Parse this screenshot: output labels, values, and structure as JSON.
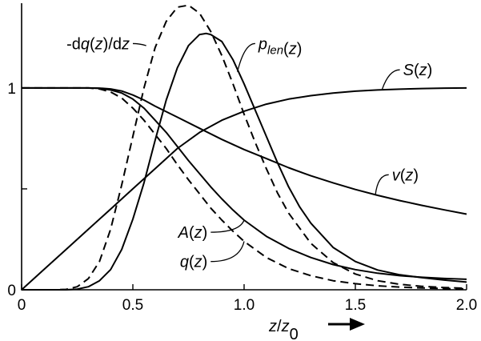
{
  "chart_data": {
    "type": "line",
    "title": "",
    "xlabel": "z/z0",
    "xlabel_parts": {
      "main": "z/z",
      "sub": "0"
    },
    "ylabel": "",
    "xlim": [
      0,
      2.0
    ],
    "ylim": [
      0,
      1.42
    ],
    "grid": false,
    "legend": "none",
    "x_ticks": [
      {
        "value": 0,
        "label": "0"
      },
      {
        "value": 0.5,
        "label": "0.5"
      },
      {
        "value": 1.0,
        "label": "1.0"
      },
      {
        "value": 1.5,
        "label": "1.5"
      },
      {
        "value": 2.0,
        "label": "2.0"
      }
    ],
    "y_ticks": [
      {
        "value": 0,
        "label": "0"
      },
      {
        "value": 0.5,
        "label": ""
      },
      {
        "value": 1,
        "label": "1"
      }
    ],
    "series": [
      {
        "name": "-dq(z)/dz",
        "style": "dashed",
        "label_parts": [
          "-d",
          {
            "i": "q"
          },
          "(",
          {
            "i": "z"
          },
          ")/d",
          {
            "i": "z"
          }
        ],
        "points": [
          [
            0,
            0
          ],
          [
            0.15,
            0
          ],
          [
            0.2,
            0.002
          ],
          [
            0.25,
            0.015
          ],
          [
            0.3,
            0.055
          ],
          [
            0.35,
            0.14
          ],
          [
            0.4,
            0.3
          ],
          [
            0.45,
            0.52
          ],
          [
            0.5,
            0.76
          ],
          [
            0.55,
            1.0
          ],
          [
            0.6,
            1.2
          ],
          [
            0.65,
            1.33
          ],
          [
            0.7,
            1.4
          ],
          [
            0.75,
            1.41
          ],
          [
            0.8,
            1.37
          ],
          [
            0.85,
            1.28
          ],
          [
            0.9,
            1.16
          ],
          [
            0.95,
            1.02
          ],
          [
            1.0,
            0.87
          ],
          [
            1.05,
            0.73
          ],
          [
            1.1,
            0.6
          ],
          [
            1.15,
            0.48
          ],
          [
            1.2,
            0.38
          ],
          [
            1.3,
            0.23
          ],
          [
            1.4,
            0.135
          ],
          [
            1.5,
            0.078
          ],
          [
            1.6,
            0.045
          ],
          [
            1.7,
            0.027
          ],
          [
            1.8,
            0.017
          ],
          [
            1.9,
            0.011
          ],
          [
            2.0,
            0.007
          ]
        ]
      },
      {
        "name": "plen(z)",
        "style": "solid",
        "label_parts": [
          {
            "i": "p"
          },
          {
            "sub": "len"
          },
          "(",
          {
            "i": "z"
          },
          ")"
        ],
        "points": [
          [
            0,
            0
          ],
          [
            0.2,
            0
          ],
          [
            0.25,
            0.003
          ],
          [
            0.3,
            0.015
          ],
          [
            0.35,
            0.045
          ],
          [
            0.4,
            0.1
          ],
          [
            0.45,
            0.2
          ],
          [
            0.5,
            0.35
          ],
          [
            0.55,
            0.53
          ],
          [
            0.6,
            0.74
          ],
          [
            0.65,
            0.94
          ],
          [
            0.7,
            1.1
          ],
          [
            0.75,
            1.21
          ],
          [
            0.8,
            1.265
          ],
          [
            0.83,
            1.27
          ],
          [
            0.85,
            1.265
          ],
          [
            0.9,
            1.23
          ],
          [
            0.95,
            1.14
          ],
          [
            1.0,
            1.02
          ],
          [
            1.05,
            0.89
          ],
          [
            1.1,
            0.76
          ],
          [
            1.15,
            0.63
          ],
          [
            1.2,
            0.51
          ],
          [
            1.25,
            0.41
          ],
          [
            1.3,
            0.33
          ],
          [
            1.4,
            0.21
          ],
          [
            1.5,
            0.14
          ],
          [
            1.6,
            0.098
          ],
          [
            1.7,
            0.074
          ],
          [
            1.8,
            0.06
          ],
          [
            1.9,
            0.048
          ],
          [
            2.0,
            0.038
          ]
        ]
      },
      {
        "name": "S(z)",
        "style": "solid",
        "label_parts": [
          {
            "i": "S"
          },
          "(",
          {
            "i": "z"
          },
          ")"
        ],
        "points": [
          [
            0,
            0
          ],
          [
            0.1,
            0.1
          ],
          [
            0.2,
            0.2
          ],
          [
            0.3,
            0.3
          ],
          [
            0.4,
            0.4
          ],
          [
            0.5,
            0.5
          ],
          [
            0.6,
            0.6
          ],
          [
            0.7,
            0.7
          ],
          [
            0.8,
            0.78
          ],
          [
            0.9,
            0.84
          ],
          [
            1.0,
            0.885
          ],
          [
            1.1,
            0.92
          ],
          [
            1.2,
            0.945
          ],
          [
            1.3,
            0.962
          ],
          [
            1.4,
            0.975
          ],
          [
            1.5,
            0.984
          ],
          [
            1.6,
            0.99
          ],
          [
            1.7,
            0.994
          ],
          [
            1.8,
            0.997
          ],
          [
            1.9,
            0.999
          ],
          [
            2.0,
            1.0
          ]
        ]
      },
      {
        "name": "v(z)",
        "style": "solid",
        "label_parts": [
          {
            "i": "v"
          },
          "(",
          {
            "i": "z"
          },
          ")"
        ],
        "points": [
          [
            0,
            1
          ],
          [
            0.3,
            1
          ],
          [
            0.35,
            0.999
          ],
          [
            0.4,
            0.995
          ],
          [
            0.45,
            0.985
          ],
          [
            0.5,
            0.965
          ],
          [
            0.55,
            0.94
          ],
          [
            0.6,
            0.91
          ],
          [
            0.7,
            0.855
          ],
          [
            0.8,
            0.8
          ],
          [
            0.9,
            0.745
          ],
          [
            1.0,
            0.695
          ],
          [
            1.1,
            0.65
          ],
          [
            1.2,
            0.605
          ],
          [
            1.3,
            0.565
          ],
          [
            1.4,
            0.53
          ],
          [
            1.5,
            0.497
          ],
          [
            1.6,
            0.468
          ],
          [
            1.7,
            0.442
          ],
          [
            1.8,
            0.418
          ],
          [
            1.9,
            0.396
          ],
          [
            2.0,
            0.375
          ]
        ]
      },
      {
        "name": "A(z)",
        "style": "solid",
        "label_parts": [
          {
            "i": "A"
          },
          "(",
          {
            "i": "z"
          },
          ")"
        ],
        "points": [
          [
            0,
            1
          ],
          [
            0.3,
            1
          ],
          [
            0.35,
            0.998
          ],
          [
            0.4,
            0.99
          ],
          [
            0.45,
            0.975
          ],
          [
            0.5,
            0.945
          ],
          [
            0.55,
            0.9
          ],
          [
            0.6,
            0.84
          ],
          [
            0.65,
            0.78
          ],
          [
            0.7,
            0.71
          ],
          [
            0.75,
            0.64
          ],
          [
            0.8,
            0.575
          ],
          [
            0.85,
            0.51
          ],
          [
            0.9,
            0.45
          ],
          [
            0.95,
            0.395
          ],
          [
            1.0,
            0.345
          ],
          [
            1.1,
            0.265
          ],
          [
            1.2,
            0.205
          ],
          [
            1.3,
            0.16
          ],
          [
            1.4,
            0.125
          ],
          [
            1.5,
            0.1
          ],
          [
            1.6,
            0.082
          ],
          [
            1.7,
            0.07
          ],
          [
            1.8,
            0.062
          ],
          [
            1.9,
            0.056
          ],
          [
            2.0,
            0.052
          ]
        ]
      },
      {
        "name": "q(z)",
        "style": "dashed",
        "label_parts": [
          {
            "i": "q"
          },
          "(",
          {
            "i": "z"
          },
          ")"
        ],
        "points": [
          [
            0,
            1
          ],
          [
            0.3,
            1
          ],
          [
            0.35,
            0.995
          ],
          [
            0.4,
            0.98
          ],
          [
            0.45,
            0.95
          ],
          [
            0.5,
            0.9
          ],
          [
            0.55,
            0.84
          ],
          [
            0.6,
            0.77
          ],
          [
            0.65,
            0.7
          ],
          [
            0.7,
            0.62
          ],
          [
            0.75,
            0.545
          ],
          [
            0.8,
            0.475
          ],
          [
            0.85,
            0.405
          ],
          [
            0.9,
            0.345
          ],
          [
            0.95,
            0.29
          ],
          [
            1.0,
            0.24
          ],
          [
            1.1,
            0.16
          ],
          [
            1.2,
            0.105
          ],
          [
            1.3,
            0.07
          ],
          [
            1.4,
            0.045
          ],
          [
            1.5,
            0.03
          ],
          [
            1.6,
            0.02
          ],
          [
            1.7,
            0.013
          ],
          [
            1.8,
            0.009
          ],
          [
            1.9,
            0.006
          ],
          [
            2.0,
            0.004
          ]
        ]
      }
    ],
    "annotations": [
      {
        "target": "-dq(z)/dz",
        "anchor": {
          "x": 0.56,
          "y": 1.21
        },
        "bend": {
          "x": 0.5,
          "y": 1.22
        },
        "label_at": {
          "x": 0.5,
          "y": 1.22
        },
        "align": "end"
      },
      {
        "target": "plen(z)",
        "anchor": {
          "x": 0.97,
          "y": 1.08
        },
        "bend": {
          "x": 1.03,
          "y": 1.22
        },
        "label_at": {
          "x": 1.05,
          "y": 1.22
        },
        "align": "start"
      },
      {
        "target": "S(z)",
        "anchor": {
          "x": 1.62,
          "y": 0.992
        },
        "bend": {
          "x": 1.68,
          "y": 1.09
        },
        "label_at": {
          "x": 1.7,
          "y": 1.09
        },
        "align": "start"
      },
      {
        "target": "v(z)",
        "anchor": {
          "x": 1.59,
          "y": 0.47
        },
        "bend": {
          "x": 1.63,
          "y": 0.57
        },
        "label_at": {
          "x": 1.65,
          "y": 0.57
        },
        "align": "start"
      },
      {
        "target": "A(z)",
        "anchor": {
          "x": 1.0,
          "y": 0.345
        },
        "bend": {
          "x": 0.95,
          "y": 0.285
        },
        "label_at": {
          "x": 0.85,
          "y": 0.285
        },
        "align": "end"
      },
      {
        "target": "q(z)",
        "anchor": {
          "x": 1.0,
          "y": 0.24
        },
        "bend": {
          "x": 0.95,
          "y": 0.14
        },
        "label_at": {
          "x": 0.85,
          "y": 0.14
        },
        "align": "end"
      }
    ],
    "x_arrow": true
  }
}
